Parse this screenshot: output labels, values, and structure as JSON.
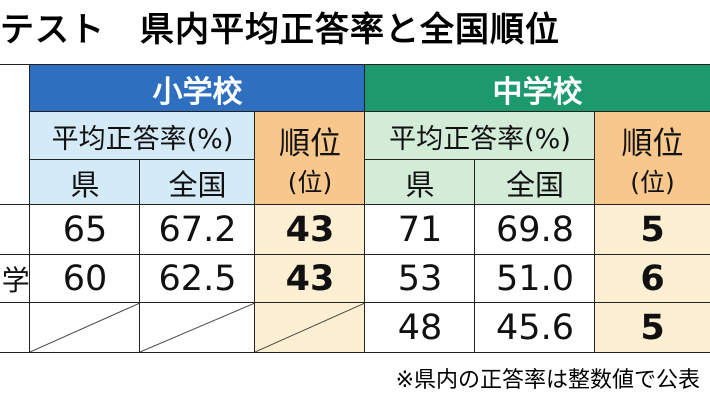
{
  "header": {
    "title": "テスト　県内平均正答率と全国順位"
  },
  "table": {
    "groups": [
      {
        "name": "小学校",
        "rate": "平均正答率(%)",
        "pref": "県",
        "national": "全国",
        "rank": "順位",
        "rank_unit": "(位)"
      },
      {
        "name": "中学校",
        "rate": "平均正答率(%)",
        "pref": "県",
        "national": "全国",
        "rank": "順位",
        "rank_unit": "(位)"
      }
    ],
    "rows": [
      {
        "values": [
          [
            "65",
            "67.2",
            "43"
          ],
          [
            "71",
            "69.8",
            "5"
          ]
        ]
      },
      {
        "label": "学",
        "values": [
          [
            "60",
            "62.5",
            "43"
          ],
          [
            "53",
            "51.0",
            "6"
          ]
        ]
      },
      {
        "values": [
          null,
          [
            "48",
            "45.6",
            "5"
          ]
        ]
      }
    ]
  },
  "footnote": "※県内の正答率は整数値で公表"
}
